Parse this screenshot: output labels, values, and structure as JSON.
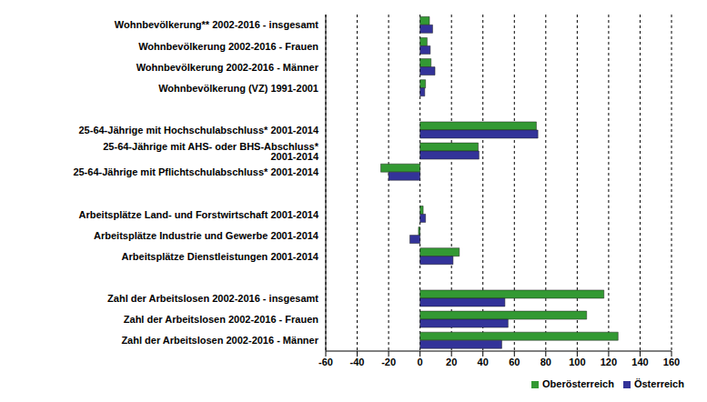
{
  "chart_data": {
    "type": "bar",
    "orientation": "horizontal",
    "grid": true,
    "legend": "bottom",
    "categories": [
      "Wohnbevölkerung** 2002-2016 - insgesamt",
      "Wohnbevölkerung 2002-2016 - Frauen",
      "Wohnbevölkerung 2002-2016 - Männer",
      "Wohnbevölkerung (VZ) 1991-2001",
      null,
      "25-64-Jährige mit Hochschulabschluss* 2001-2014",
      "25-64-Jährige mit AHS- oder BHS-Abschluss* 2001-2014",
      "25-64-Jährige mit Pflichtschulabschluss* 2001-2014",
      null,
      "Arbeitsplätze Land- und Forstwirtschaft 2001-2014",
      "Arbeitsplätze Industrie und Gewerbe 2001-2014",
      "Arbeitsplätze Dienstleistungen 2001-2014",
      null,
      "Zahl der Arbeitslosen 2002-2016 - insgesamt",
      "Zahl der Arbeitslosen 2002-2016 - Frauen",
      "Zahl der Arbeitslosen 2002-2016 - Männer"
    ],
    "series": [
      {
        "name": "Oberösterreich",
        "color": "#339933",
        "values": [
          6,
          4.5,
          7,
          3.5,
          null,
          74,
          37,
          -25,
          null,
          2,
          -1,
          25,
          null,
          117,
          106,
          126
        ]
      },
      {
        "name": "Österreich",
        "color": "#333399",
        "values": [
          8,
          6.5,
          9.5,
          3,
          null,
          75,
          37.5,
          -20,
          null,
          3.5,
          -6.5,
          21,
          null,
          54,
          56,
          52
        ]
      }
    ],
    "xlim": [
      -60,
      160
    ],
    "xticks": [
      -60,
      -40,
      -20,
      0,
      20,
      40,
      60,
      80,
      100,
      120,
      140,
      160
    ]
  }
}
